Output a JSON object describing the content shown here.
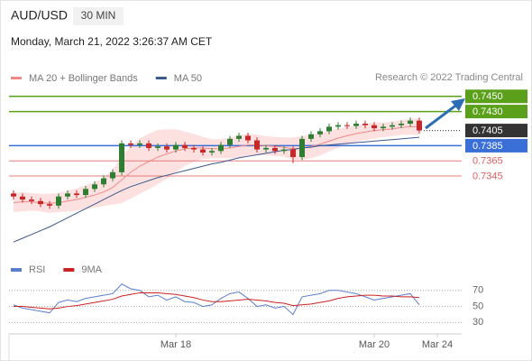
{
  "header": {
    "symbol": "AUD/USD",
    "timeframe": "30 MIN",
    "timestamp": "Monday, March 21, 2022 3:26:37 AM CET"
  },
  "chart_data": [
    {
      "type": "candlestick",
      "annotation": "Research © 2022 Trading Central",
      "up_color": "#2e7d32",
      "down_color": "#c62828",
      "ylim": [
        0.7238,
        0.7464
      ],
      "open": [
        0.7322,
        0.7318,
        0.7314,
        0.7312,
        0.7308,
        0.7306,
        0.7318,
        0.7322,
        0.732,
        0.7328,
        0.7334,
        0.7342,
        0.735,
        0.7388,
        0.7386,
        0.7388,
        0.7382,
        0.7384,
        0.738,
        0.7386,
        0.7382,
        0.738,
        0.7376,
        0.7378,
        0.7386,
        0.7394,
        0.7398,
        0.7392,
        0.738,
        0.7382,
        0.7378,
        0.738,
        0.737,
        0.7394,
        0.74,
        0.7404,
        0.741,
        0.7412,
        0.7411,
        0.7414,
        0.7412,
        0.7408,
        0.741,
        0.7412,
        0.7414,
        0.7418
      ],
      "high": [
        0.7326,
        0.7322,
        0.7318,
        0.7316,
        0.7312,
        0.7322,
        0.7326,
        0.7326,
        0.7332,
        0.7338,
        0.7346,
        0.7354,
        0.7392,
        0.7392,
        0.7392,
        0.7392,
        0.7388,
        0.7388,
        0.739,
        0.739,
        0.7386,
        0.7384,
        0.7382,
        0.739,
        0.7398,
        0.7402,
        0.7402,
        0.7396,
        0.7386,
        0.7386,
        0.7384,
        0.7384,
        0.7398,
        0.7404,
        0.7408,
        0.7414,
        0.7416,
        0.7416,
        0.7418,
        0.7418,
        0.7416,
        0.7414,
        0.7416,
        0.7418,
        0.7422,
        0.7422
      ],
      "low": [
        0.7314,
        0.731,
        0.7308,
        0.7304,
        0.7302,
        0.7302,
        0.7314,
        0.7316,
        0.7316,
        0.7324,
        0.733,
        0.7338,
        0.7346,
        0.7382,
        0.7382,
        0.7378,
        0.7378,
        0.7376,
        0.7376,
        0.7378,
        0.7376,
        0.7372,
        0.7372,
        0.7374,
        0.7382,
        0.739,
        0.7388,
        0.7376,
        0.7376,
        0.7374,
        0.7374,
        0.7362,
        0.7366,
        0.739,
        0.7396,
        0.74,
        0.7406,
        0.7407,
        0.7407,
        0.7408,
        0.7404,
        0.7404,
        0.7406,
        0.7408,
        0.741,
        0.7401
      ],
      "close": [
        0.7318,
        0.7314,
        0.7312,
        0.7308,
        0.7306,
        0.7318,
        0.7322,
        0.732,
        0.7328,
        0.7334,
        0.7342,
        0.735,
        0.7388,
        0.7386,
        0.7388,
        0.7382,
        0.7384,
        0.738,
        0.7386,
        0.7382,
        0.738,
        0.7376,
        0.7378,
        0.7386,
        0.7394,
        0.7398,
        0.7392,
        0.738,
        0.7382,
        0.7378,
        0.738,
        0.737,
        0.7394,
        0.74,
        0.7404,
        0.741,
        0.7412,
        0.7411,
        0.7414,
        0.7412,
        0.7408,
        0.741,
        0.7412,
        0.7414,
        0.7418,
        0.7405
      ],
      "series": [
        {
          "name": "MA 20 + Bollinger Bands",
          "color": "#f08a8a",
          "band_color": "#fde0e0",
          "values": [
            0.731,
            0.7311,
            0.7311,
            0.731,
            0.7309,
            0.731,
            0.7312,
            0.7314,
            0.7317,
            0.732,
            0.7324,
            0.733,
            0.734,
            0.735,
            0.7358,
            0.7364,
            0.737,
            0.7374,
            0.7378,
            0.7381,
            0.7382,
            0.7382,
            0.7381,
            0.7381,
            0.7382,
            0.7384,
            0.7386,
            0.7386,
            0.7385,
            0.7384,
            0.7383,
            0.7381,
            0.7382,
            0.7384,
            0.7387,
            0.7391,
            0.7395,
            0.7398,
            0.7401,
            0.7403,
            0.7405,
            0.7406,
            0.7407,
            0.7409,
            0.741,
            0.741
          ],
          "upper": [
            0.7322,
            0.7323,
            0.7322,
            0.7321,
            0.7321,
            0.7322,
            0.7325,
            0.7328,
            0.7332,
            0.7336,
            0.7342,
            0.7352,
            0.737,
            0.7384,
            0.7394,
            0.74,
            0.7405,
            0.7406,
            0.7406,
            0.7403,
            0.74,
            0.7396,
            0.7393,
            0.7393,
            0.7395,
            0.7398,
            0.74,
            0.7399,
            0.7397,
            0.7396,
            0.7395,
            0.7395,
            0.7397,
            0.7399,
            0.7401,
            0.7404,
            0.7407,
            0.7409,
            0.7411,
            0.7413,
            0.7415,
            0.7415,
            0.7416,
            0.7418,
            0.742,
            0.7421
          ],
          "lower": [
            0.7298,
            0.7299,
            0.73,
            0.7299,
            0.7297,
            0.7298,
            0.7299,
            0.73,
            0.7302,
            0.7304,
            0.7306,
            0.7308,
            0.731,
            0.7316,
            0.7322,
            0.7328,
            0.7335,
            0.7342,
            0.735,
            0.7359,
            0.7364,
            0.7368,
            0.7369,
            0.7369,
            0.7369,
            0.737,
            0.7372,
            0.7373,
            0.7373,
            0.7372,
            0.7371,
            0.7367,
            0.7367,
            0.7369,
            0.7373,
            0.7378,
            0.7383,
            0.7387,
            0.7391,
            0.7393,
            0.7395,
            0.7397,
            0.7398,
            0.74,
            0.74,
            0.7399
          ]
        },
        {
          "name": "MA 50",
          "color": "#3b5a8f",
          "values": [
            0.7258,
            0.7263,
            0.7268,
            0.7273,
            0.7278,
            0.7284,
            0.729,
            0.7296,
            0.7302,
            0.7308,
            0.7314,
            0.732,
            0.7326,
            0.7331,
            0.7335,
            0.7339,
            0.7343,
            0.7346,
            0.7349,
            0.7352,
            0.7355,
            0.7358,
            0.7361,
            0.7363,
            0.7366,
            0.7369,
            0.7371,
            0.7373,
            0.7375,
            0.7377,
            0.7379,
            0.738,
            0.7382,
            0.7383,
            0.7385,
            0.7386,
            0.7387,
            0.7388,
            0.7389,
            0.739,
            0.7391,
            0.7392,
            0.7393,
            0.7394,
            0.7395,
            0.7396
          ]
        }
      ],
      "levels": [
        {
          "value": 0.745,
          "label": "0.7450",
          "color": "#5ba01b",
          "box": true,
          "line": "solid"
        },
        {
          "value": 0.743,
          "label": "0.7430",
          "color": "#5ba01b",
          "box": true,
          "line": "solid"
        },
        {
          "value": 0.7405,
          "label": "0.7405",
          "color": "#333333",
          "box": true,
          "line": "dotted"
        },
        {
          "value": 0.7385,
          "label": "0.7385",
          "color": "#3a6fd8",
          "box": true,
          "line": "solid"
        },
        {
          "value": 0.7365,
          "label": "0.7365",
          "color": "#e06060",
          "box": false,
          "line": "solid"
        },
        {
          "value": 0.7345,
          "label": "0.7345",
          "color": "#e06060",
          "box": false,
          "line": "solid"
        }
      ]
    },
    {
      "type": "line",
      "categories": [
        null,
        null,
        null,
        null,
        null,
        null,
        null,
        null,
        null,
        null,
        null,
        null,
        null,
        null,
        null,
        null,
        null,
        null,
        "Mar 18",
        null,
        null,
        null,
        null,
        null,
        null,
        null,
        null,
        null,
        null,
        null,
        null,
        null,
        null,
        null,
        null,
        null,
        null,
        null,
        null,
        null,
        "Mar 20",
        null,
        null,
        null,
        null,
        null,
        null,
        "Mar 24",
        null,
        null
      ],
      "ylim": [
        18,
        81
      ],
      "yticks": [
        70,
        50,
        30
      ],
      "grid": true,
      "series": [
        {
          "name": "RSI",
          "color": "#5b7fcf",
          "values": [
            52,
            48,
            46,
            44,
            42,
            55,
            58,
            56,
            60,
            62,
            64,
            66,
            78,
            72,
            70,
            62,
            64,
            58,
            62,
            56,
            55,
            50,
            52,
            60,
            66,
            68,
            60,
            50,
            52,
            48,
            50,
            40,
            62,
            64,
            66,
            70,
            70,
            68,
            66,
            62,
            58,
            60,
            62,
            64,
            66,
            52,
            null,
            null,
            null,
            null
          ]
        },
        {
          "name": "9MA",
          "color": "#cc2222",
          "values": [
            50,
            50,
            49,
            48,
            47,
            48,
            50,
            51,
            53,
            55,
            57,
            59,
            63,
            65,
            67,
            67,
            67,
            66,
            65,
            63,
            61,
            58,
            56,
            56,
            57,
            58,
            59,
            58,
            57,
            55,
            54,
            51,
            52,
            53,
            55,
            57,
            60,
            62,
            63,
            64,
            64,
            63,
            63,
            62,
            62,
            61,
            null,
            null,
            null,
            null
          ]
        }
      ]
    }
  ]
}
